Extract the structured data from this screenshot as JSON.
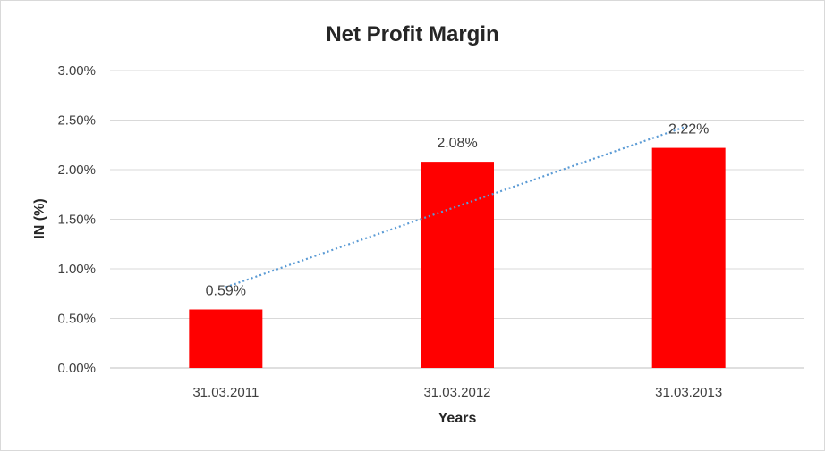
{
  "chart_data": {
    "type": "bar",
    "title": "Net Profit Margin",
    "xlabel": "Years",
    "ylabel": "IN (%)",
    "categories": [
      "31.03.2011",
      "31.03.2012",
      "31.03.2013"
    ],
    "series": [
      {
        "values": [
          0.59,
          2.08,
          2.22
        ],
        "color": "#ff0000",
        "data_labels": [
          "0.59%",
          "2.08%",
          "2.22%"
        ]
      }
    ],
    "trendline": {
      "type": "linear",
      "style": "dotted",
      "color": "#5b9bd5"
    },
    "ylim": [
      0,
      3
    ],
    "yticks": [
      0,
      0.5,
      1,
      1.5,
      2,
      2.5,
      3
    ],
    "ytick_labels": [
      "0.00%",
      "0.50%",
      "1.00%",
      "1.50%",
      "2.00%",
      "2.50%",
      "3.00%"
    ],
    "grid": true,
    "legend": "none"
  }
}
